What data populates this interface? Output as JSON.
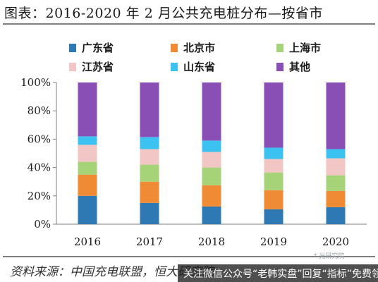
{
  "title": "图表：2016-2020 年 2 月公共充电桩分布—按省市",
  "source": "资料来源：中国充电联盟，恒大研究院",
  "watermark": "关注微信公众号“老韩实盘”回复“指标”免费领",
  "faint_text": "*  光研究院",
  "colors": {
    "广东省": "#2e78b3",
    "北京市": "#ef8a35",
    "上海市": "#a6d378",
    "江苏省": "#f2c6c4",
    "山东省": "#3bc2f0",
    "其他": "#8a4fb5"
  },
  "chart_data": {
    "type": "bar",
    "stacked": true,
    "categories": [
      "2016",
      "2017",
      "2018",
      "2019",
      "2020"
    ],
    "series": [
      {
        "name": "广东省",
        "values": [
          20,
          15,
          12.5,
          10.5,
          12
        ]
      },
      {
        "name": "北京市",
        "values": [
          15,
          15,
          15,
          13.5,
          11.5
        ]
      },
      {
        "name": "上海市",
        "values": [
          9,
          12,
          12.5,
          12.5,
          11
        ]
      },
      {
        "name": "江苏省",
        "values": [
          12,
          11,
          11,
          9.5,
          12
        ]
      },
      {
        "name": "山东省",
        "values": [
          6,
          8.5,
          8,
          8,
          6.5
        ]
      },
      {
        "name": "其他",
        "values": [
          38,
          38.5,
          41,
          46,
          47
        ]
      }
    ],
    "yticks": [
      "0%",
      "20%",
      "40%",
      "60%",
      "80%",
      "100%"
    ],
    "ylim": [
      0,
      100
    ],
    "legend_position": "top",
    "grid": false
  }
}
